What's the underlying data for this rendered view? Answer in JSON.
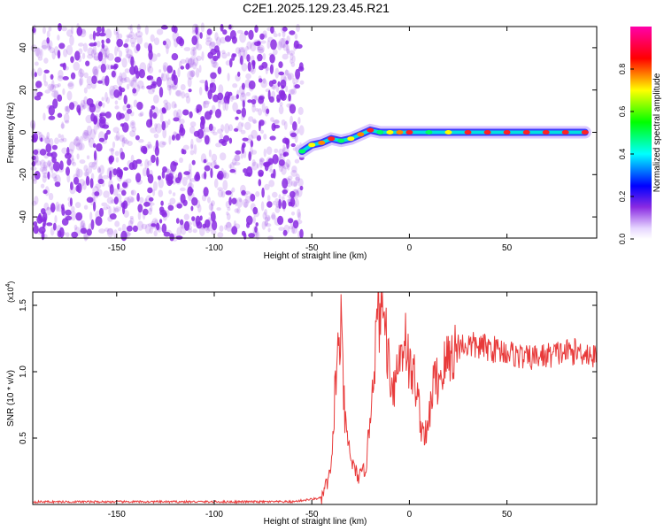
{
  "title": "C2E1.2025.129.23.45.R21",
  "colors": {
    "snr_line": "#e83a3a",
    "noise_dots": "#8a2be2",
    "axis": "#000000"
  },
  "chart_data": [
    {
      "type": "heatmap",
      "title": "C2E1.2025.129.23.45.R21",
      "xlabel": "Height of straight line (km)",
      "ylabel": "Frequency (Hz)",
      "xlim": [
        -193,
        96
      ],
      "ylim": [
        -50,
        50
      ],
      "xticks": [
        -150,
        -100,
        -50,
        0,
        50
      ],
      "yticks": [
        -40,
        -20,
        0,
        20,
        40
      ],
      "colorbar": {
        "label": "Normalized spectral amplitude",
        "range": [
          0,
          1
        ],
        "ticks": [
          "0.0",
          "0.2",
          "0.4",
          "0.6",
          "0.8"
        ]
      },
      "signal_trace": [
        {
          "x": -55,
          "y": -9
        },
        {
          "x": -50,
          "y": -6
        },
        {
          "x": -45,
          "y": -5
        },
        {
          "x": -40,
          "y": -3
        },
        {
          "x": -35,
          "y": -4
        },
        {
          "x": -30,
          "y": -3
        },
        {
          "x": -25,
          "y": -1
        },
        {
          "x": -20,
          "y": 1
        },
        {
          "x": -15,
          "y": 0
        },
        {
          "x": -10,
          "y": 0
        },
        {
          "x": -5,
          "y": 0
        },
        {
          "x": 0,
          "y": 0
        },
        {
          "x": 10,
          "y": 0
        },
        {
          "x": 20,
          "y": 0
        },
        {
          "x": 30,
          "y": 0
        },
        {
          "x": 40,
          "y": 0
        },
        {
          "x": 50,
          "y": 0
        },
        {
          "x": 60,
          "y": 0
        },
        {
          "x": 70,
          "y": 0
        },
        {
          "x": 80,
          "y": 0
        },
        {
          "x": 90,
          "y": 0
        }
      ]
    },
    {
      "type": "line",
      "xlabel": "Height of straight line (km)",
      "ylabel": "SNR (10 * v/v)",
      "y_multiplier": "(x10",
      "y_multiplier_exp": "4",
      "y_multiplier_close": ")",
      "xlim": [
        -193,
        96
      ],
      "ylim": [
        0,
        1.6
      ],
      "xticks": [
        -150,
        -100,
        -50,
        0,
        50
      ],
      "yticks": [
        "0.5",
        "1.0",
        "1.5"
      ],
      "series": [
        {
          "x": [
            -193,
            -60,
            -45,
            -40,
            -38,
            -36,
            -35,
            -33,
            -30,
            -28,
            -25,
            -22,
            -20,
            -18,
            -16,
            -14,
            -12,
            -10,
            -8,
            -5,
            -2,
            0,
            3,
            6,
            9,
            12,
            15,
            20,
            25,
            30,
            40,
            50,
            60,
            70,
            80,
            90,
            96
          ],
          "y": [
            0.02,
            0.02,
            0.05,
            0.25,
            0.9,
            1.2,
            1.3,
            0.6,
            0.35,
            0.25,
            0.2,
            0.3,
            0.7,
            1.1,
            1.4,
            1.6,
            1.3,
            1.0,
            0.9,
            1.1,
            1.3,
            1.0,
            0.95,
            0.6,
            0.5,
            0.9,
            0.95,
            1.1,
            1.2,
            1.2,
            1.18,
            1.15,
            1.1,
            1.12,
            1.15,
            1.15,
            1.1
          ]
        }
      ]
    }
  ]
}
